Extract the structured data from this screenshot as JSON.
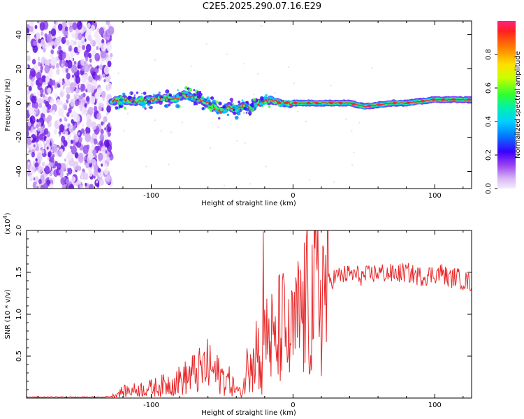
{
  "title": "C2E5.2025.290.07.16.E29",
  "chart_data": [
    {
      "type": "heatmap",
      "name": "spectrogram",
      "xlabel": "Height of straight line (km)",
      "ylabel": "Frequency (Hz)",
      "xlim": [
        -188,
        126
      ],
      "ylim": [
        -50,
        48
      ],
      "xticks": [
        -100,
        0,
        100
      ],
      "xtick_labels": [
        "-100",
        "0",
        "100"
      ],
      "yticks": [
        -40,
        -20,
        0,
        20,
        40
      ],
      "ytick_labels": [
        "-40",
        "-20",
        "0",
        "20",
        "40"
      ],
      "noise_region_x": [
        -188,
        -128
      ],
      "track": {
        "x": [
          -128,
          -120,
          -110,
          -100,
          -90,
          -82,
          -78,
          -70,
          -60,
          -50,
          -45,
          -40,
          -35,
          -30,
          -25,
          -20,
          -15,
          -10,
          0,
          20,
          40,
          50,
          60,
          70,
          80,
          90,
          100,
          110,
          126
        ],
        "y": [
          1,
          2,
          1,
          2,
          3,
          2,
          5,
          3,
          0,
          -5,
          -2,
          -4,
          -1,
          -3,
          0,
          1,
          2,
          0,
          0,
          0,
          0,
          -2,
          -1,
          0,
          0,
          1,
          2,
          2,
          2
        ]
      },
      "colorbar": {
        "label": "Normalized spectral amplitude",
        "ticks": [
          0.0,
          0.2,
          0.4,
          0.6,
          0.8
        ],
        "tick_labels": [
          "0.0",
          "0.2",
          "0.4",
          "0.6",
          "0.8"
        ],
        "range": [
          0,
          1
        ]
      }
    },
    {
      "type": "line",
      "name": "snr",
      "xlabel": "Height of straight line (km)",
      "ylabel": "SNR (10 * v/v)",
      "multiplier": "(x10^4)",
      "multiplier_base": "(x10",
      "multiplier_exp": "4",
      "multiplier_close": ")",
      "xlim": [
        -188,
        126
      ],
      "ylim": [
        0,
        2.0
      ],
      "xticks": [
        -100,
        0,
        100
      ],
      "xtick_labels": [
        "-100",
        "0",
        "100"
      ],
      "yticks": [
        0.5,
        1.0,
        1.5,
        2.0
      ],
      "ytick_labels": [
        "0.5",
        "1.0",
        "1.5",
        "2.0"
      ],
      "series": [
        {
          "name": "SNR",
          "color": "#e8282a",
          "x": [
            -188,
            -170,
            -150,
            -135,
            -128,
            -120,
            -110,
            -100,
            -92,
            -85,
            -78,
            -72,
            -66,
            -60,
            -55,
            -50,
            -45,
            -40,
            -36,
            -33,
            -30,
            -27,
            -24,
            -22,
            -21,
            -20,
            -18,
            -15,
            -12,
            -9,
            -6,
            -3,
            0,
            3,
            6,
            10,
            15,
            20,
            25,
            30,
            40,
            50,
            60,
            70,
            80,
            90,
            100,
            105,
            110,
            115,
            120,
            126
          ],
          "y": [
            0.01,
            0.01,
            0.01,
            0.01,
            0.02,
            0.08,
            0.1,
            0.12,
            0.15,
            0.18,
            0.22,
            0.28,
            0.32,
            0.38,
            0.3,
            0.25,
            0.2,
            0.1,
            0.05,
            0.3,
            0.6,
            0.7,
            0.5,
            0.2,
            1.98,
            0.6,
            0.8,
            0.7,
            0.55,
            0.9,
            0.8,
            0.65,
            0.75,
            0.9,
            1.0,
            1.1,
            1.2,
            1.3,
            1.38,
            1.45,
            1.48,
            1.45,
            1.5,
            1.48,
            1.5,
            1.45,
            1.48,
            1.5,
            1.42,
            1.45,
            1.4,
            1.38
          ]
        }
      ]
    }
  ],
  "colors": {
    "line": "#e8282a"
  }
}
